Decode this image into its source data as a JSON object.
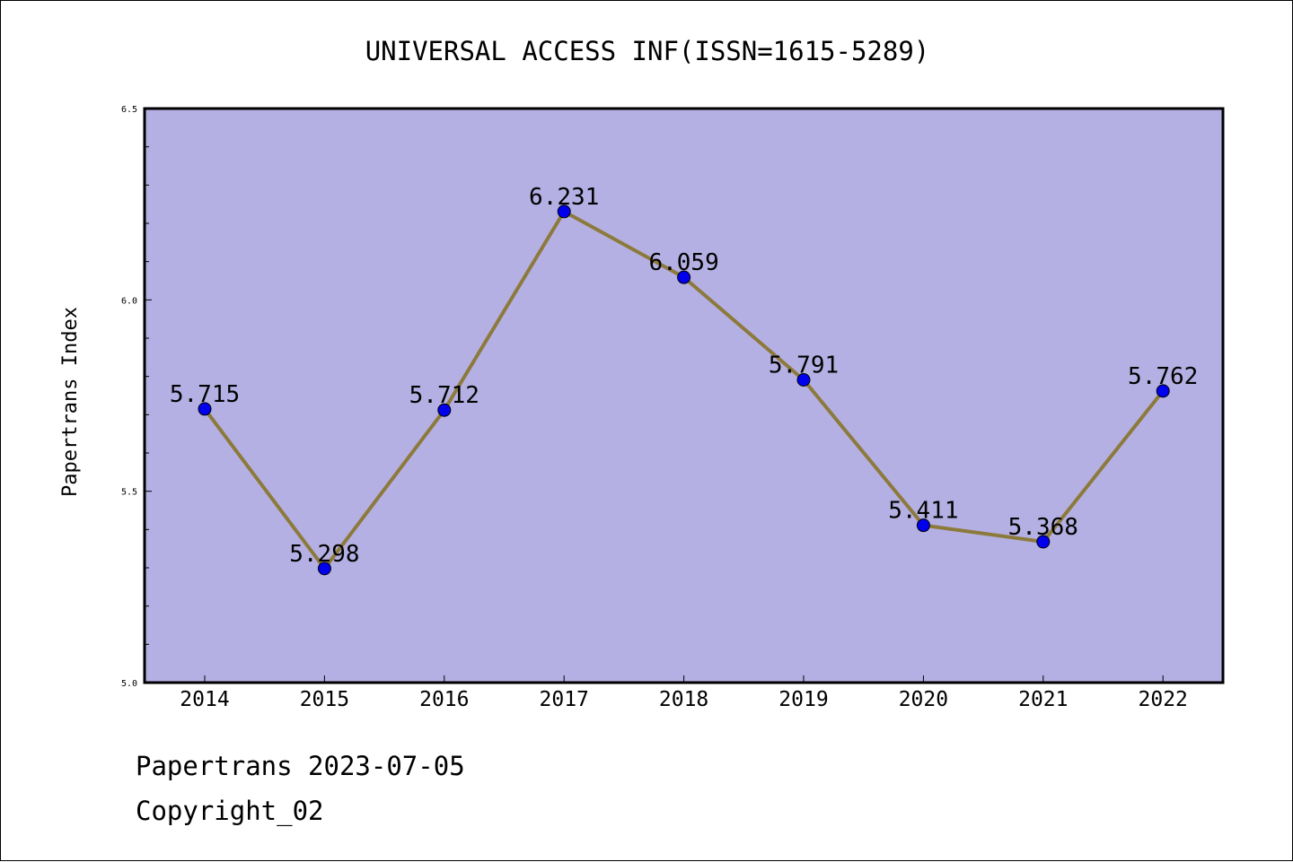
{
  "chart_data": {
    "type": "line",
    "title": "UNIVERSAL ACCESS INF(ISSN=1615-5289)",
    "xlabel": "",
    "ylabel": "Papertrans Index",
    "x": [
      "2014",
      "2015",
      "2016",
      "2017",
      "2018",
      "2019",
      "2020",
      "2021",
      "2022"
    ],
    "series": [
      {
        "values": [
          5.715,
          5.298,
          5.712,
          6.231,
          6.059,
          5.791,
          5.411,
          5.368,
          5.762
        ],
        "labels": [
          "5.715",
          "5.298",
          "5.712",
          "6.231",
          "6.059",
          "5.791",
          "5.411",
          "5.368",
          "5.762"
        ]
      }
    ],
    "ylim": [
      5.0,
      6.5
    ],
    "yticks": [
      "5.0",
      "5.5",
      "6.0",
      "6.5"
    ],
    "grid": false,
    "colors": {
      "plot_background": "#b5b0e3",
      "line": "#8c7a3c",
      "marker": "#0000ee"
    }
  },
  "footer": {
    "line1": "Papertrans 2023-07-05",
    "line2": "Copyright_02"
  }
}
